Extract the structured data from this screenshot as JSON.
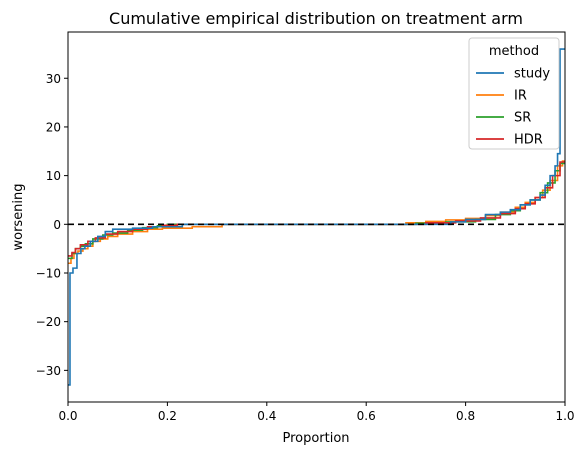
{
  "chart_data": {
    "type": "line",
    "step": true,
    "title": "Cumulative empirical distribution on treatment arm",
    "xlabel": "Proportion",
    "ylabel": "worsening",
    "xlim": [
      0,
      1
    ],
    "ylim": [
      -36.5,
      39.5
    ],
    "xticks": [
      {
        "value": 0.0,
        "label": "0.0"
      },
      {
        "value": 0.2,
        "label": "0.2"
      },
      {
        "value": 0.4,
        "label": "0.4"
      },
      {
        "value": 0.6,
        "label": "0.6"
      },
      {
        "value": 0.8,
        "label": "0.8"
      },
      {
        "value": 1.0,
        "label": "1.0"
      }
    ],
    "yticks": [
      {
        "value": -30,
        "label": "−30"
      },
      {
        "value": -20,
        "label": "−20"
      },
      {
        "value": -10,
        "label": "−10"
      },
      {
        "value": 0,
        "label": "0"
      },
      {
        "value": 10,
        "label": "10"
      },
      {
        "value": 20,
        "label": "20"
      },
      {
        "value": 30,
        "label": "30"
      }
    ],
    "grid": false,
    "reference_line": {
      "y": 0,
      "style": "dashed",
      "color": "#000000"
    },
    "legend": {
      "title": "method",
      "placement": "top-right"
    },
    "series": [
      {
        "name": "IR",
        "color": "#ff7f0e",
        "points": [
          [
            0.0,
            -8
          ],
          [
            0.006,
            -7
          ],
          [
            0.012,
            -6
          ],
          [
            0.02,
            -5.5
          ],
          [
            0.03,
            -5
          ],
          [
            0.04,
            -4.5
          ],
          [
            0.05,
            -3.5
          ],
          [
            0.065,
            -3
          ],
          [
            0.08,
            -2.5
          ],
          [
            0.1,
            -2
          ],
          [
            0.13,
            -1.5
          ],
          [
            0.16,
            -1
          ],
          [
            0.19,
            -0.8
          ],
          [
            0.25,
            -0.5
          ],
          [
            0.31,
            0
          ],
          [
            0.68,
            0.3
          ],
          [
            0.72,
            0.6
          ],
          [
            0.76,
            0.9
          ],
          [
            0.8,
            1.2
          ],
          [
            0.84,
            1.8
          ],
          [
            0.87,
            2.5
          ],
          [
            0.9,
            3.5
          ],
          [
            0.92,
            4.5
          ],
          [
            0.94,
            5.5
          ],
          [
            0.955,
            7
          ],
          [
            0.97,
            9
          ],
          [
            0.985,
            12
          ],
          [
            0.995,
            13
          ],
          [
            1.0,
            13
          ]
        ]
      },
      {
        "name": "SR",
        "color": "#2ca02c",
        "points": [
          [
            0.0,
            -7
          ],
          [
            0.008,
            -6
          ],
          [
            0.015,
            -5
          ],
          [
            0.025,
            -4.5
          ],
          [
            0.035,
            -4
          ],
          [
            0.05,
            -3
          ],
          [
            0.07,
            -2.2
          ],
          [
            0.09,
            -1.8
          ],
          [
            0.12,
            -1.2
          ],
          [
            0.15,
            -0.7
          ],
          [
            0.18,
            -0.3
          ],
          [
            0.2,
            0
          ],
          [
            0.7,
            0.2
          ],
          [
            0.76,
            0.5
          ],
          [
            0.82,
            1
          ],
          [
            0.86,
            2
          ],
          [
            0.89,
            2.8
          ],
          [
            0.91,
            4
          ],
          [
            0.93,
            5
          ],
          [
            0.95,
            6.5
          ],
          [
            0.965,
            8.5
          ],
          [
            0.98,
            11
          ],
          [
            0.99,
            12.5
          ],
          [
            1.0,
            12.5
          ]
        ]
      },
      {
        "name": "HDR",
        "color": "#d62728",
        "points": [
          [
            0.0,
            -6.5
          ],
          [
            0.008,
            -5.8
          ],
          [
            0.015,
            -5
          ],
          [
            0.025,
            -4.2
          ],
          [
            0.04,
            -3.5
          ],
          [
            0.055,
            -2.8
          ],
          [
            0.075,
            -2
          ],
          [
            0.1,
            -1.5
          ],
          [
            0.13,
            -1
          ],
          [
            0.16,
            -0.5
          ],
          [
            0.19,
            -0.2
          ],
          [
            0.22,
            0
          ],
          [
            0.72,
            0.3
          ],
          [
            0.78,
            0.7
          ],
          [
            0.83,
            1.3
          ],
          [
            0.87,
            2.2
          ],
          [
            0.9,
            3.2
          ],
          [
            0.92,
            4.2
          ],
          [
            0.94,
            5.5
          ],
          [
            0.96,
            7.5
          ],
          [
            0.975,
            10
          ],
          [
            0.99,
            12.8
          ],
          [
            1.0,
            12.8
          ]
        ]
      },
      {
        "name": "study",
        "color": "#1f77b4",
        "points": [
          [
            0.0,
            -33
          ],
          [
            0.004,
            -10
          ],
          [
            0.01,
            -9
          ],
          [
            0.018,
            -6
          ],
          [
            0.026,
            -5
          ],
          [
            0.034,
            -4.5
          ],
          [
            0.045,
            -3.5
          ],
          [
            0.06,
            -2.5
          ],
          [
            0.075,
            -1.5
          ],
          [
            0.09,
            -1
          ],
          [
            0.13,
            -0.8
          ],
          [
            0.17,
            -0.5
          ],
          [
            0.23,
            0
          ],
          [
            0.77,
            0.5
          ],
          [
            0.8,
            1
          ],
          [
            0.84,
            2
          ],
          [
            0.87,
            2.5
          ],
          [
            0.89,
            3
          ],
          [
            0.91,
            4
          ],
          [
            0.93,
            5
          ],
          [
            0.95,
            6
          ],
          [
            0.96,
            8
          ],
          [
            0.97,
            10
          ],
          [
            0.98,
            12
          ],
          [
            0.985,
            14.5
          ],
          [
            0.99,
            36
          ],
          [
            1.0,
            36
          ]
        ]
      }
    ]
  }
}
